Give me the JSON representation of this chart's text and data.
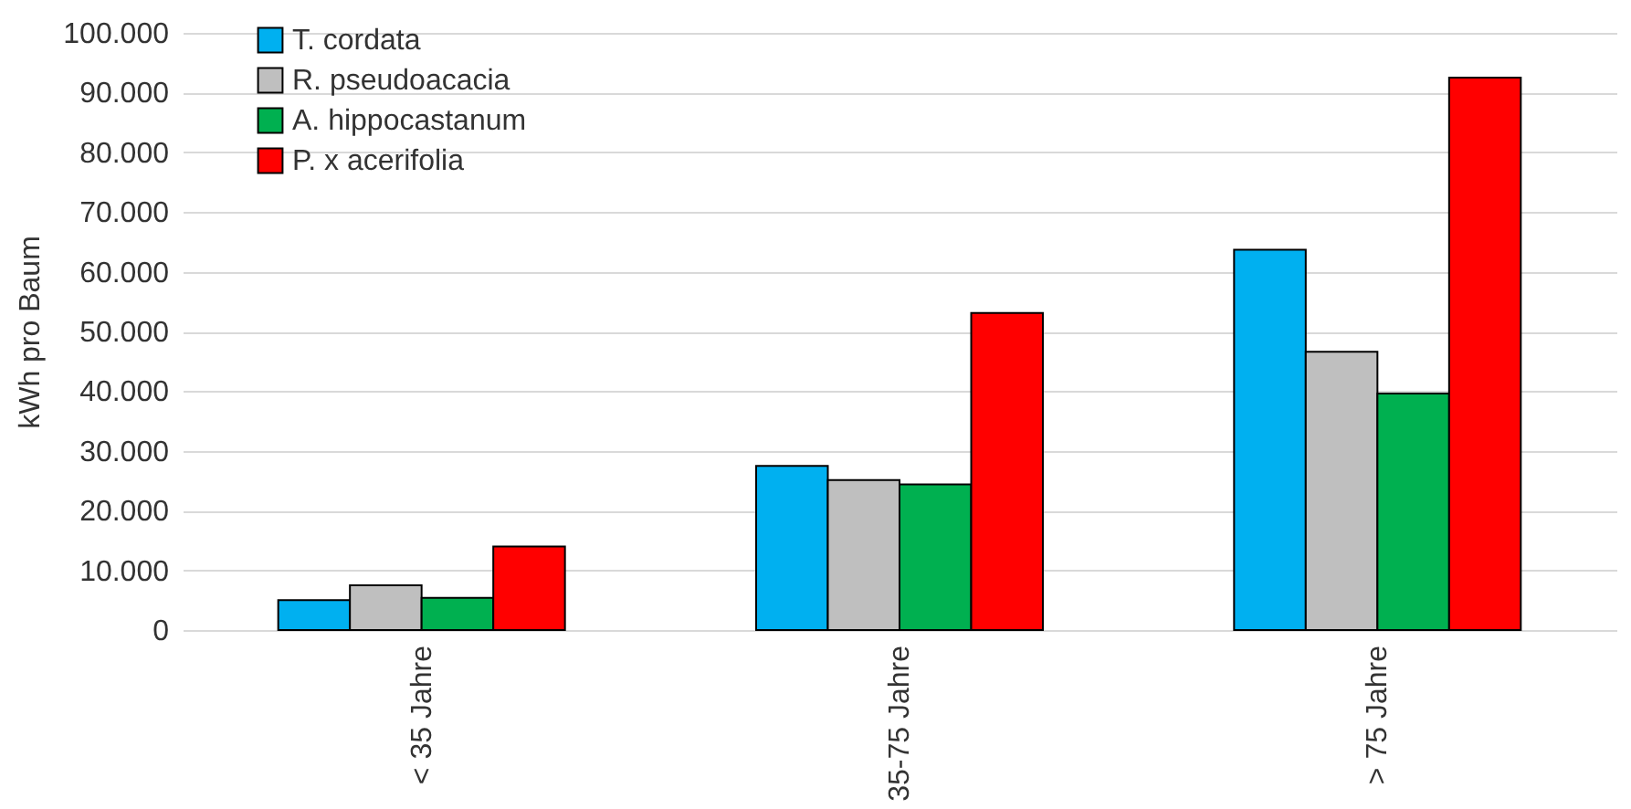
{
  "chart_data": {
    "type": "bar",
    "ylabel": "kWh pro Baum",
    "categories": [
      "< 35 Jahre",
      "35-75 Jahre",
      "> 75 Jahre"
    ],
    "series": [
      {
        "name": "T. cordata",
        "color": "#00b0f0",
        "values": [
          5000,
          27500,
          63700
        ]
      },
      {
        "name": "R. pseudoacacia",
        "color": "#bfbfbf",
        "values": [
          7500,
          25100,
          46600
        ]
      },
      {
        "name": "A. hippocastanum",
        "color": "#00b050",
        "values": [
          5400,
          24400,
          39600
        ]
      },
      {
        "name": "P. x acerifolia",
        "color": "#ff0000",
        "values": [
          14000,
          53100,
          92500
        ]
      }
    ],
    "ylim": [
      0,
      100000
    ],
    "yticks": [
      0,
      {
        "value": 10000,
        "label": "10.000"
      },
      {
        "value": 20000,
        "label": "20.000"
      },
      {
        "value": 30000,
        "label": "30.000"
      },
      {
        "value": 40000,
        "label": "40.000"
      },
      {
        "value": 50000,
        "label": "50.000"
      },
      {
        "value": 60000,
        "label": "60.000"
      },
      {
        "value": 70000,
        "label": "70.000"
      },
      {
        "value": 80000,
        "label": "80.000"
      },
      {
        "value": 90000,
        "label": "90.000"
      },
      {
        "value": 100000,
        "label": "100.000"
      }
    ],
    "grid": "y",
    "legend": "top left"
  }
}
